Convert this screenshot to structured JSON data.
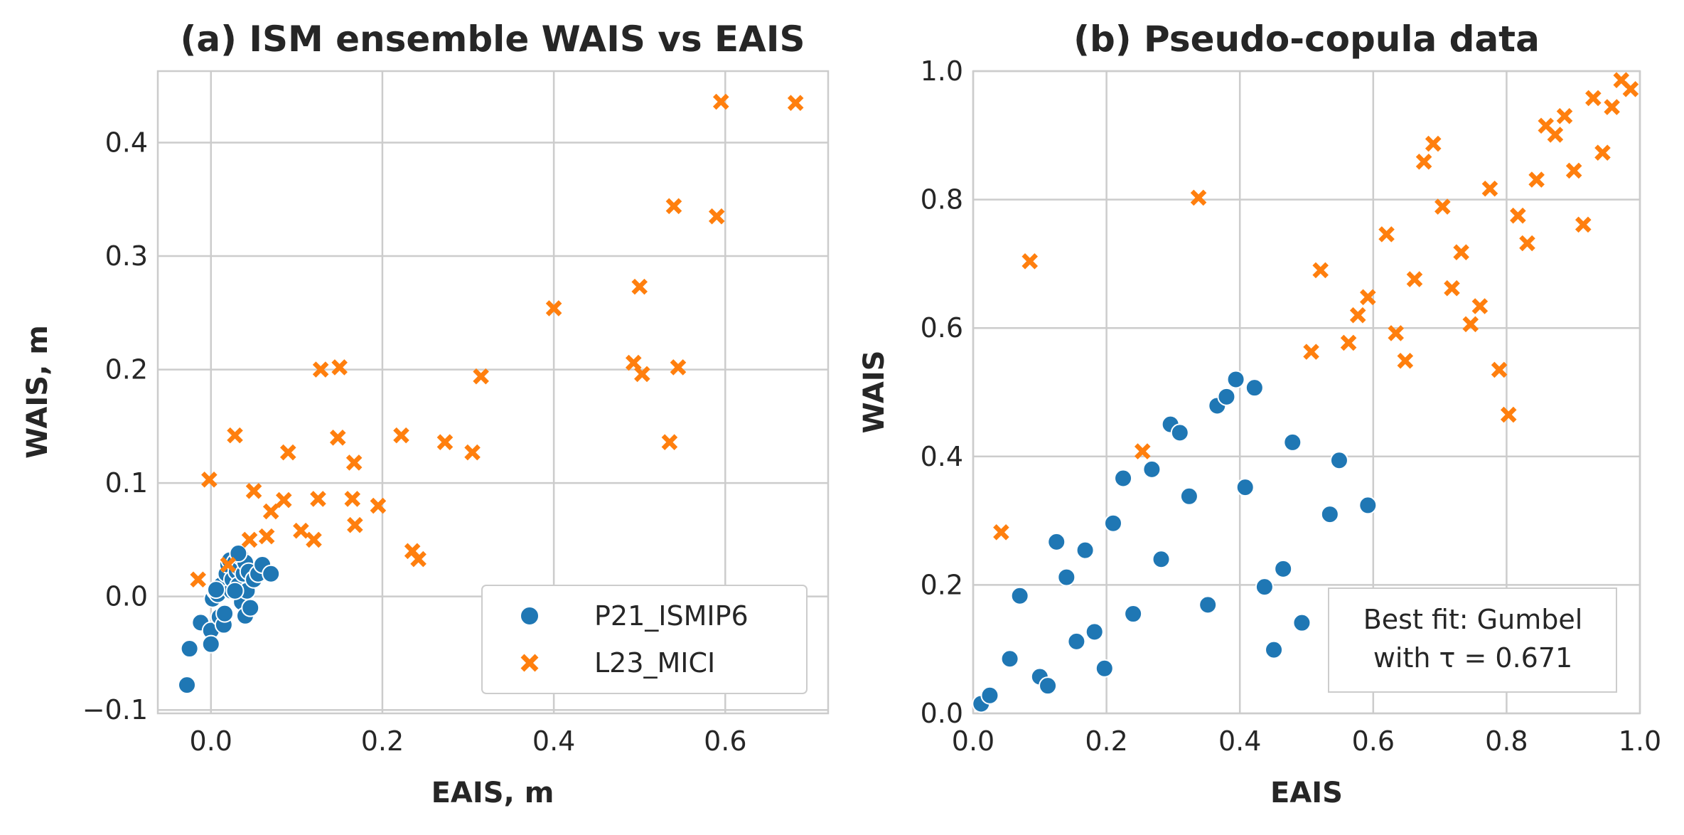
{
  "colors": {
    "blue": "#1f77b4",
    "orange": "#ff7f0e",
    "grid": "#cccccc",
    "text": "#262626"
  },
  "chart_data": [
    {
      "type": "scatter",
      "title": "(a) ISM ensemble WAIS vs EAIS",
      "xlabel": "EAIS, m",
      "ylabel": "WAIS, m",
      "xlim": [
        -0.062,
        0.72
      ],
      "ylim": [
        -0.103,
        0.463
      ],
      "xticks": [
        0.0,
        0.2,
        0.4,
        0.6
      ],
      "xtick_labels": [
        "0.0",
        "0.2",
        "0.4",
        "0.6"
      ],
      "yticks": [
        -0.1,
        0.0,
        0.1,
        0.2,
        0.3,
        0.4
      ],
      "ytick_labels": [
        "−0.1",
        "0.0",
        "0.1",
        "0.2",
        "0.3",
        "0.4"
      ],
      "grid": true,
      "legend": {
        "placement": "lower-right",
        "entries": [
          "P21_ISMIP6",
          "L23_MICI"
        ]
      },
      "series": [
        {
          "name": "P21_ISMIP6",
          "marker": "circle",
          "color": "#1f77b4",
          "points": [
            [
              -0.028,
              -0.078
            ],
            [
              -0.025,
              -0.046
            ],
            [
              -0.012,
              -0.023
            ],
            [
              0.0,
              -0.03
            ],
            [
              0.0,
              -0.042
            ],
            [
              0.002,
              -0.002
            ],
            [
              0.005,
              0.005
            ],
            [
              0.008,
              0.002
            ],
            [
              0.01,
              -0.018
            ],
            [
              0.012,
              0.01
            ],
            [
              0.015,
              -0.025
            ],
            [
              0.016,
              -0.015
            ],
            [
              0.018,
              0.02
            ],
            [
              0.02,
              0.028
            ],
            [
              0.022,
              0.032
            ],
            [
              0.024,
              0.005
            ],
            [
              0.025,
              0.015
            ],
            [
              0.028,
              0.03
            ],
            [
              0.03,
              0.022
            ],
            [
              0.032,
              0.01
            ],
            [
              0.034,
              0.025
            ],
            [
              0.035,
              0.035
            ],
            [
              0.036,
              -0.005
            ],
            [
              0.038,
              0.02
            ],
            [
              0.04,
              0.03
            ],
            [
              0.04,
              -0.017
            ],
            [
              0.042,
              0.005
            ],
            [
              0.044,
              0.022
            ],
            [
              0.046,
              -0.01
            ],
            [
              0.05,
              0.015
            ],
            [
              0.055,
              0.02
            ],
            [
              0.06,
              0.028
            ],
            [
              0.07,
              0.02
            ],
            [
              0.028,
              0.005
            ],
            [
              0.032,
              0.038
            ],
            [
              0.006,
              0.006
            ]
          ]
        },
        {
          "name": "L23_MICI",
          "marker": "x",
          "color": "#ff7f0e",
          "points": [
            [
              -0.015,
              0.015
            ],
            [
              -0.002,
              0.103
            ],
            [
              0.02,
              0.028
            ],
            [
              0.028,
              0.142
            ],
            [
              0.045,
              0.05
            ],
            [
              0.05,
              0.093
            ],
            [
              0.065,
              0.053
            ],
            [
              0.07,
              0.075
            ],
            [
              0.085,
              0.085
            ],
            [
              0.09,
              0.127
            ],
            [
              0.105,
              0.058
            ],
            [
              0.12,
              0.05
            ],
            [
              0.125,
              0.086
            ],
            [
              0.128,
              0.2
            ],
            [
              0.148,
              0.14
            ],
            [
              0.15,
              0.202
            ],
            [
              0.165,
              0.086
            ],
            [
              0.167,
              0.118
            ],
            [
              0.168,
              0.063
            ],
            [
              0.195,
              0.08
            ],
            [
              0.222,
              0.142
            ],
            [
              0.235,
              0.04
            ],
            [
              0.242,
              0.033
            ],
            [
              0.273,
              0.136
            ],
            [
              0.305,
              0.127
            ],
            [
              0.315,
              0.194
            ],
            [
              0.4,
              0.254
            ],
            [
              0.493,
              0.206
            ],
            [
              0.5,
              0.273
            ],
            [
              0.503,
              0.196
            ],
            [
              0.535,
              0.136
            ],
            [
              0.54,
              0.344
            ],
            [
              0.545,
              0.202
            ],
            [
              0.59,
              0.335
            ],
            [
              0.595,
              0.436
            ],
            [
              0.682,
              0.435
            ]
          ]
        }
      ]
    },
    {
      "type": "scatter",
      "title": "(b) Pseudo-copula data",
      "xlabel": "EAIS",
      "ylabel": "WAIS",
      "xlim": [
        0.0,
        1.0
      ],
      "ylim": [
        0.0,
        1.0
      ],
      "xticks": [
        0.0,
        0.2,
        0.4,
        0.6,
        0.8,
        1.0
      ],
      "xtick_labels": [
        "0.0",
        "0.2",
        "0.4",
        "0.6",
        "0.8",
        "1.0"
      ],
      "yticks": [
        0.0,
        0.2,
        0.4,
        0.6,
        0.8,
        1.0
      ],
      "ytick_labels": [
        "0.0",
        "0.2",
        "0.4",
        "0.6",
        "0.8",
        "1.0"
      ],
      "grid": true,
      "annotation": {
        "placement": "lower-right",
        "line1": "Best fit: Gumbel",
        "line2": "with τ = 0.671"
      },
      "series": [
        {
          "name": "P21_ISMIP6",
          "marker": "circle",
          "color": "#1f77b4",
          "points": [
            [
              0.012,
              0.015
            ],
            [
              0.025,
              0.028
            ],
            [
              0.055,
              0.085
            ],
            [
              0.07,
              0.183
            ],
            [
              0.1,
              0.057
            ],
            [
              0.112,
              0.043
            ],
            [
              0.125,
              0.267
            ],
            [
              0.14,
              0.212
            ],
            [
              0.155,
              0.112
            ],
            [
              0.168,
              0.254
            ],
            [
              0.182,
              0.127
            ],
            [
              0.197,
              0.07
            ],
            [
              0.21,
              0.296
            ],
            [
              0.225,
              0.366
            ],
            [
              0.24,
              0.155
            ],
            [
              0.268,
              0.38
            ],
            [
              0.282,
              0.24
            ],
            [
              0.296,
              0.45
            ],
            [
              0.31,
              0.437
            ],
            [
              0.324,
              0.338
            ],
            [
              0.352,
              0.169
            ],
            [
              0.366,
              0.479
            ],
            [
              0.38,
              0.493
            ],
            [
              0.394,
              0.52
            ],
            [
              0.408,
              0.352
            ],
            [
              0.422,
              0.507
            ],
            [
              0.437,
              0.197
            ],
            [
              0.451,
              0.099
            ],
            [
              0.465,
              0.225
            ],
            [
              0.479,
              0.422
            ],
            [
              0.493,
              0.141
            ],
            [
              0.535,
              0.31
            ],
            [
              0.549,
              0.394
            ],
            [
              0.592,
              0.324
            ]
          ]
        },
        {
          "name": "L23_MICI",
          "marker": "x",
          "color": "#ff7f0e",
          "points": [
            [
              0.042,
              0.282
            ],
            [
              0.085,
              0.704
            ],
            [
              0.254,
              0.408
            ],
            [
              0.338,
              0.803
            ],
            [
              0.507,
              0.563
            ],
            [
              0.521,
              0.69
            ],
            [
              0.563,
              0.577
            ],
            [
              0.577,
              0.62
            ],
            [
              0.592,
              0.648
            ],
            [
              0.62,
              0.746
            ],
            [
              0.634,
              0.592
            ],
            [
              0.648,
              0.549
            ],
            [
              0.662,
              0.676
            ],
            [
              0.676,
              0.859
            ],
            [
              0.69,
              0.887
            ],
            [
              0.704,
              0.789
            ],
            [
              0.718,
              0.662
            ],
            [
              0.732,
              0.718
            ],
            [
              0.746,
              0.606
            ],
            [
              0.76,
              0.634
            ],
            [
              0.775,
              0.817
            ],
            [
              0.789,
              0.535
            ],
            [
              0.803,
              0.465
            ],
            [
              0.817,
              0.775
            ],
            [
              0.831,
              0.732
            ],
            [
              0.845,
              0.831
            ],
            [
              0.859,
              0.915
            ],
            [
              0.873,
              0.901
            ],
            [
              0.887,
              0.93
            ],
            [
              0.901,
              0.845
            ],
            [
              0.915,
              0.761
            ],
            [
              0.93,
              0.958
            ],
            [
              0.944,
              0.873
            ],
            [
              0.958,
              0.944
            ],
            [
              0.972,
              0.986
            ],
            [
              0.986,
              0.972
            ]
          ]
        }
      ]
    }
  ]
}
